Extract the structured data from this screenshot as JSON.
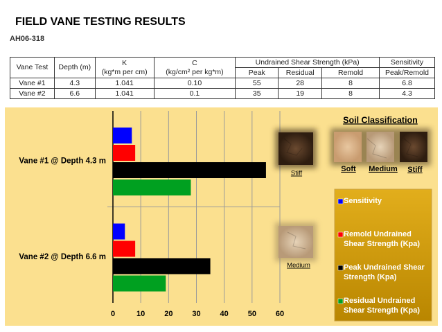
{
  "title": "FIELD VANE TESTING RESULTS",
  "subtitle": "AH06-318",
  "table": {
    "header": {
      "vane_test": "Vane Test",
      "depth": "Depth (m)",
      "k": "K",
      "k_unit": "(kg*m per cm)",
      "c": "C",
      "c_unit": "(kg/cm² per kg*m)",
      "shear": "Undrained Shear Strength (kPa)",
      "peak": "Peak",
      "residual": "Residual",
      "remold": "Remold",
      "sensitivity": "Sensitivity",
      "sensitivity_unit": "Peak/Remold"
    },
    "rows": [
      [
        "Vane #1",
        "4.3",
        "1.041",
        "0.10",
        "55",
        "28",
        "8",
        "6.8"
      ],
      [
        "Vane #2",
        "6.6",
        "1.041",
        "0.1",
        "35",
        "19",
        "8",
        "4.3"
      ]
    ]
  },
  "soil_classification": {
    "title": "Soil Classification",
    "labels": [
      "Soft",
      "Medium",
      "Stiff"
    ],
    "annotations": [
      "Stiff",
      "Medium"
    ]
  },
  "chart_data": {
    "type": "hbar",
    "categories": [
      "Vane #1 @ Depth 4.3 m",
      "Vane #2 @ Depth 6.6 m"
    ],
    "series": [
      {
        "name": "Sensitivity",
        "color": "#0000ff",
        "values": [
          6.8,
          4.3
        ]
      },
      {
        "name": "Remold Undrained Shear Strength (Kpa)",
        "color": "#ff0000",
        "values": [
          8,
          8
        ]
      },
      {
        "name": "Peak Undrained Shear Strength (Kpa)",
        "color": "#000000",
        "values": [
          55,
          35
        ]
      },
      {
        "name": "Residual Undrained Shear Strength (Kpa)",
        "color": "#00a020",
        "values": [
          28,
          19
        ]
      }
    ],
    "xlim": [
      0,
      60
    ],
    "xticks": [
      0,
      10,
      20,
      30,
      40,
      50,
      60
    ],
    "grid": true
  }
}
